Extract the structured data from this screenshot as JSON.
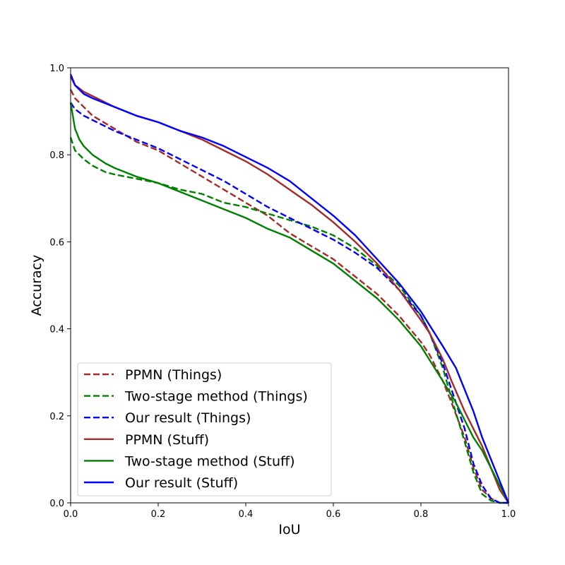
{
  "chart_data": {
    "type": "line",
    "title": "",
    "xlabel": "IoU",
    "ylabel": "Accuracy",
    "xlim": [
      0.0,
      1.0
    ],
    "ylim": [
      0.0,
      1.0
    ],
    "xticks": [
      "0.0",
      "0.2",
      "0.4",
      "0.6",
      "0.8",
      "1.0"
    ],
    "yticks": [
      "0.0",
      "0.2",
      "0.4",
      "0.6",
      "0.8",
      "1.0"
    ],
    "grid": false,
    "legend_position": "lower-left",
    "series": [
      {
        "name": "PPMN (Things)",
        "color": "#a52a2a",
        "dash": "dashed",
        "x": [
          0.0,
          0.01,
          0.05,
          0.1,
          0.15,
          0.2,
          0.25,
          0.3,
          0.35,
          0.4,
          0.45,
          0.5,
          0.55,
          0.6,
          0.65,
          0.7,
          0.75,
          0.8,
          0.82,
          0.85,
          0.87,
          0.9,
          0.92,
          0.94,
          0.96,
          0.98,
          1.0
        ],
        "y": [
          0.95,
          0.93,
          0.89,
          0.86,
          0.83,
          0.81,
          0.78,
          0.75,
          0.72,
          0.69,
          0.66,
          0.62,
          0.59,
          0.56,
          0.52,
          0.48,
          0.43,
          0.37,
          0.34,
          0.28,
          0.23,
          0.15,
          0.08,
          0.03,
          0.01,
          0.0,
          0.0
        ]
      },
      {
        "name": "Two-stage method (Things)",
        "color": "#008000",
        "dash": "dashed",
        "x": [
          0.0,
          0.01,
          0.03,
          0.05,
          0.08,
          0.1,
          0.15,
          0.2,
          0.25,
          0.3,
          0.35,
          0.4,
          0.45,
          0.5,
          0.55,
          0.6,
          0.65,
          0.7,
          0.75,
          0.8,
          0.82,
          0.85,
          0.87,
          0.9,
          0.92,
          0.94,
          0.96,
          0.98,
          1.0
        ],
        "y": [
          0.84,
          0.81,
          0.79,
          0.775,
          0.76,
          0.755,
          0.745,
          0.735,
          0.72,
          0.71,
          0.69,
          0.68,
          0.665,
          0.65,
          0.635,
          0.615,
          0.585,
          0.545,
          0.5,
          0.43,
          0.39,
          0.31,
          0.24,
          0.14,
          0.07,
          0.02,
          0.005,
          0.0,
          0.0
        ]
      },
      {
        "name": "Our result (Things)",
        "color": "#0000ff",
        "dash": "dashed",
        "x": [
          0.0,
          0.01,
          0.03,
          0.05,
          0.1,
          0.15,
          0.2,
          0.25,
          0.3,
          0.35,
          0.4,
          0.45,
          0.5,
          0.55,
          0.6,
          0.65,
          0.7,
          0.75,
          0.8,
          0.82,
          0.85,
          0.87,
          0.9,
          0.92,
          0.94,
          0.96,
          0.98,
          1.0
        ],
        "y": [
          0.92,
          0.905,
          0.89,
          0.88,
          0.855,
          0.835,
          0.815,
          0.79,
          0.765,
          0.74,
          0.71,
          0.68,
          0.655,
          0.63,
          0.605,
          0.575,
          0.54,
          0.49,
          0.43,
          0.39,
          0.32,
          0.26,
          0.17,
          0.09,
          0.04,
          0.01,
          0.0,
          0.0
        ]
      },
      {
        "name": "PPMN (Stuff)",
        "color": "#a52a2a",
        "dash": "solid",
        "x": [
          0.0,
          0.01,
          0.03,
          0.05,
          0.1,
          0.15,
          0.2,
          0.25,
          0.3,
          0.35,
          0.4,
          0.45,
          0.5,
          0.55,
          0.6,
          0.65,
          0.7,
          0.75,
          0.8,
          0.82,
          0.85,
          0.87,
          0.9,
          0.92,
          0.94,
          0.96,
          0.98,
          1.0
        ],
        "y": [
          0.98,
          0.96,
          0.945,
          0.935,
          0.91,
          0.89,
          0.875,
          0.855,
          0.835,
          0.81,
          0.785,
          0.755,
          0.72,
          0.685,
          0.645,
          0.6,
          0.55,
          0.49,
          0.42,
          0.39,
          0.33,
          0.28,
          0.21,
          0.17,
          0.13,
          0.08,
          0.03,
          0.0
        ]
      },
      {
        "name": "Two-stage method (Stuff)",
        "color": "#008000",
        "dash": "solid",
        "x": [
          0.0,
          0.005,
          0.01,
          0.02,
          0.03,
          0.05,
          0.08,
          0.1,
          0.15,
          0.2,
          0.25,
          0.3,
          0.35,
          0.4,
          0.45,
          0.5,
          0.55,
          0.6,
          0.65,
          0.7,
          0.75,
          0.8,
          0.85,
          0.88,
          0.9,
          0.92,
          0.94,
          0.96,
          0.98,
          1.0
        ],
        "y": [
          0.92,
          0.89,
          0.86,
          0.835,
          0.82,
          0.8,
          0.78,
          0.77,
          0.75,
          0.735,
          0.715,
          0.695,
          0.675,
          0.655,
          0.63,
          0.61,
          0.58,
          0.55,
          0.51,
          0.47,
          0.42,
          0.36,
          0.28,
          0.23,
          0.19,
          0.15,
          0.12,
          0.08,
          0.04,
          0.0
        ]
      },
      {
        "name": "Our result (Stuff)",
        "color": "#0000ff",
        "dash": "solid",
        "x": [
          0.0,
          0.01,
          0.03,
          0.05,
          0.1,
          0.15,
          0.2,
          0.25,
          0.3,
          0.35,
          0.4,
          0.45,
          0.5,
          0.55,
          0.6,
          0.65,
          0.7,
          0.75,
          0.8,
          0.85,
          0.88,
          0.9,
          0.92,
          0.94,
          0.96,
          0.98,
          1.0
        ],
        "y": [
          0.985,
          0.96,
          0.94,
          0.93,
          0.91,
          0.89,
          0.875,
          0.855,
          0.84,
          0.82,
          0.795,
          0.77,
          0.74,
          0.7,
          0.66,
          0.615,
          0.56,
          0.505,
          0.44,
          0.36,
          0.31,
          0.26,
          0.21,
          0.15,
          0.1,
          0.05,
          0.0
        ]
      }
    ]
  }
}
